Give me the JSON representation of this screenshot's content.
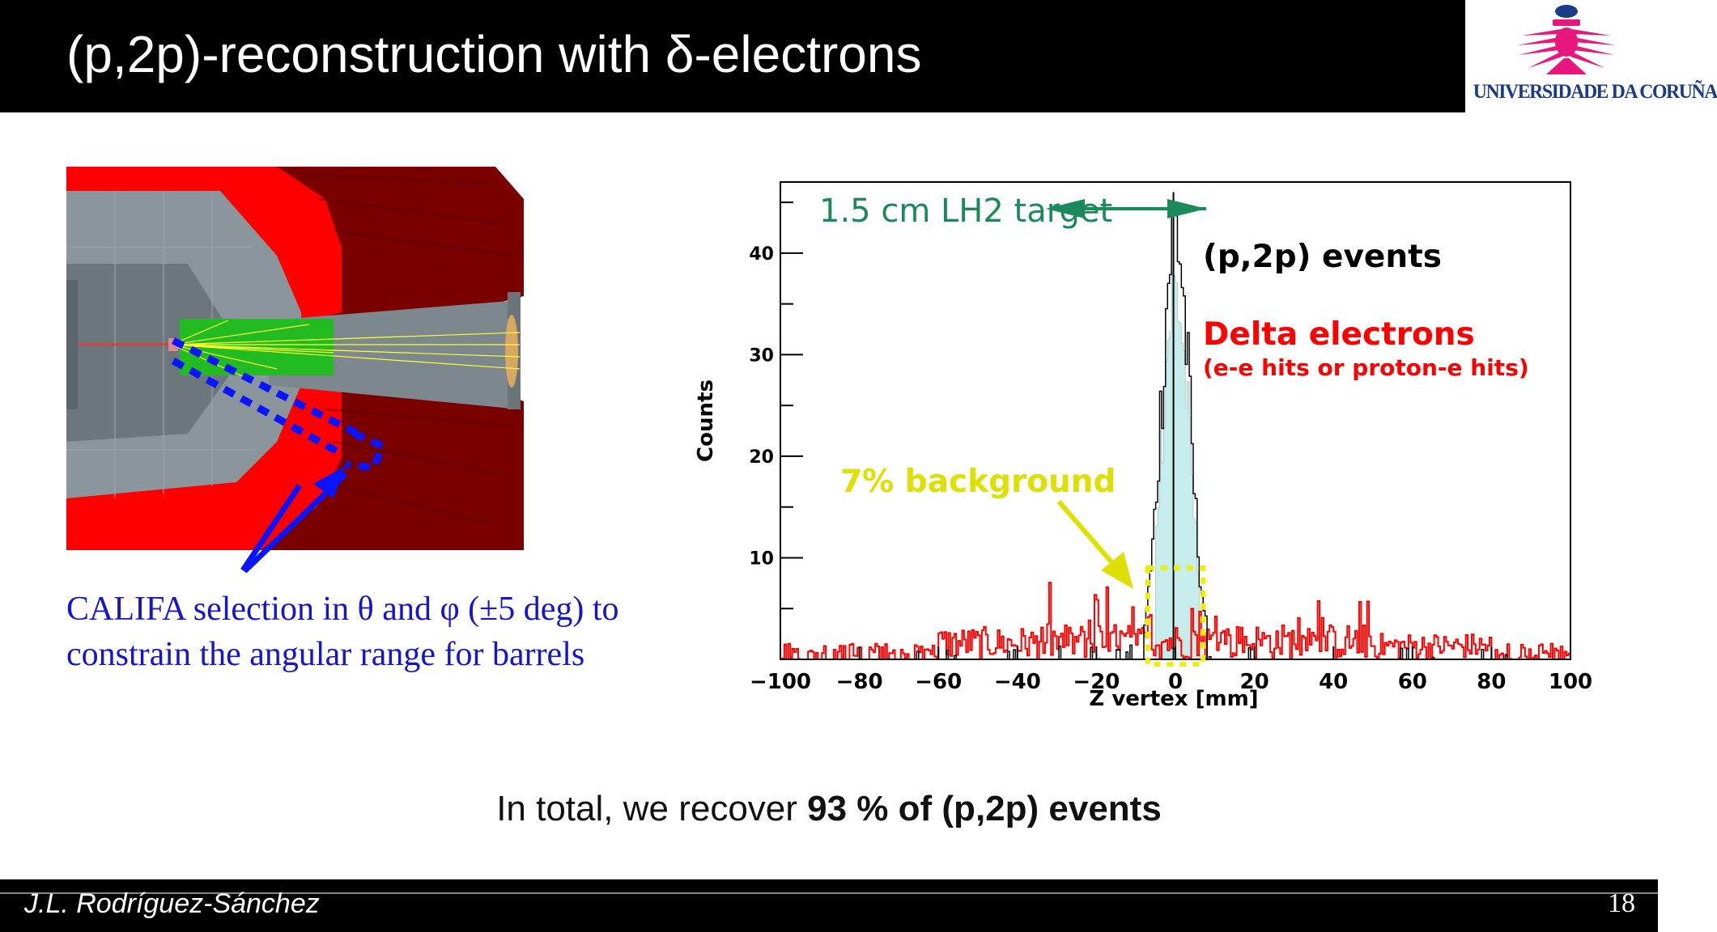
{
  "slide": {
    "title": "(p,2p)-reconstruction with δ-electrons",
    "logo_text": "UNIVERSIDADE DA CORUÑA",
    "left_caption_line1": "CALIFA selection in θ and φ (±5 deg) to",
    "left_caption_line2": "constrain the angular range for barrels",
    "summary_prefix": "In total, we recover ",
    "summary_bold": "93 % of (p,2p) events",
    "author": "J.L. Rodríguez-Sánchez",
    "page_number": "18"
  },
  "colors": {
    "header": "#000000",
    "caption_blue": "#1414d2",
    "target_green": "#1a8a5a",
    "delta_red": "#ff0000",
    "background_yellow": "#dde000",
    "fill_cyan": "#c6ecec"
  },
  "chart_data": {
    "type": "histogram",
    "xlabel": "Z vertex [mm]",
    "ylabel": "Counts",
    "xlim": [
      -100,
      100
    ],
    "ylim": [
      0,
      47
    ],
    "xticks": [
      "−100",
      "−80",
      "−60",
      "−40",
      "−20",
      "0",
      "20",
      "40",
      "60",
      "80",
      "100"
    ],
    "yticks": [
      "10",
      "20",
      "30",
      "40"
    ],
    "annotations": {
      "target": "1.5 cm LH2 target",
      "pp_events": "(p,2p) events",
      "delta": "Delta electrons",
      "delta_sub": "(e-e hits or proton-e hits)",
      "background": "7% background"
    },
    "series": [
      {
        "name": "(p,2p) events",
        "color": "#000000",
        "peak_center": 0,
        "peak_max": 46,
        "peak_sigma": 3.5
      },
      {
        "name": "Delta electrons",
        "color": "#ff0000",
        "typical_level": 3.5,
        "max_level": 8
      }
    ]
  }
}
